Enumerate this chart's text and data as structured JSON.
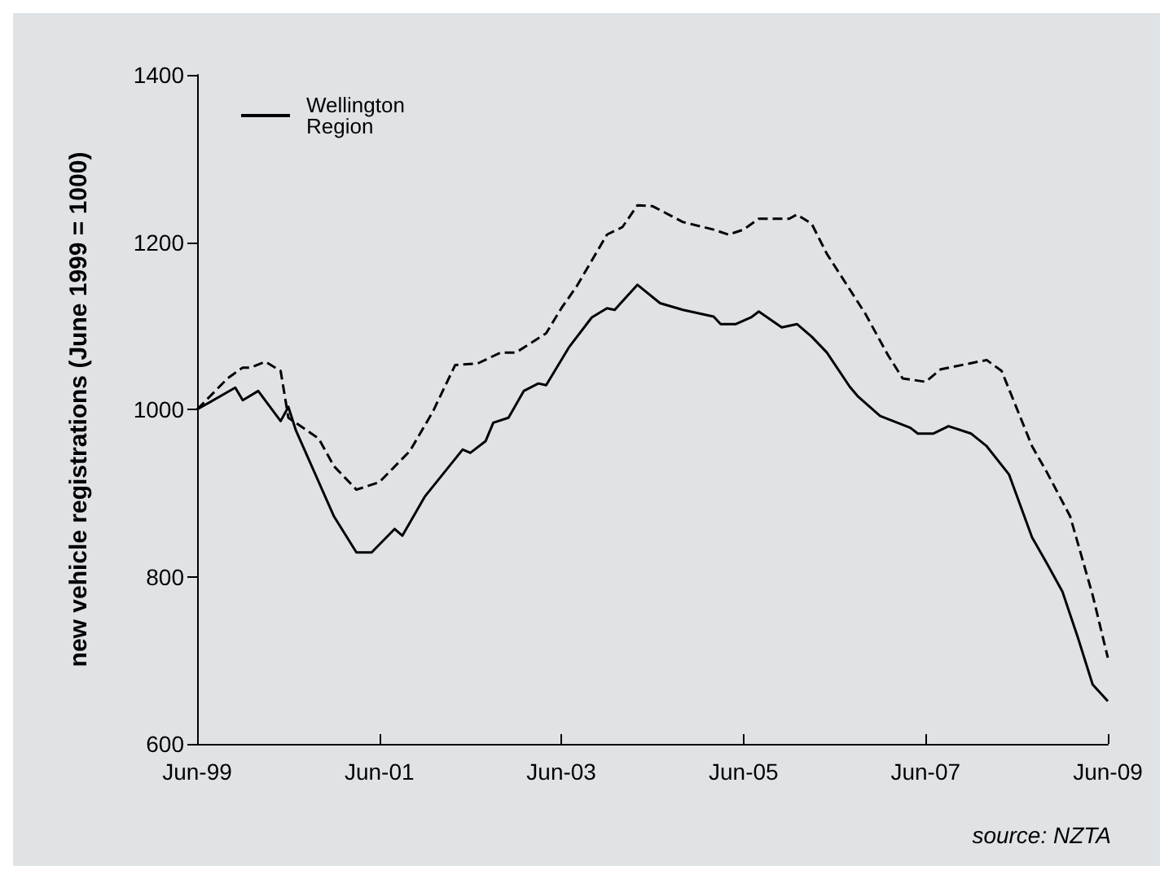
{
  "chart_data": {
    "type": "line",
    "ylabel": "new vehicle registrations (June 1999 = 1000)",
    "annotations": [
      "source: NZTA"
    ],
    "xlim": [
      "1999-06",
      "2009-06"
    ],
    "xticks": [
      {
        "value": "1999-06",
        "label": "Jun-99"
      },
      {
        "value": "2001-06",
        "label": "Jun-01"
      },
      {
        "value": "2003-06",
        "label": "Jun-03"
      },
      {
        "value": "2005-06",
        "label": "Jun-05"
      },
      {
        "value": "2007-06",
        "label": "Jun-07"
      },
      {
        "value": "2009-06",
        "label": "Jun-09"
      }
    ],
    "ylim": [
      600,
      1400
    ],
    "yticks": [
      600,
      800,
      1000,
      1200,
      1400
    ],
    "legend": "top left",
    "marker": "none",
    "series": [
      {
        "name": "Wellington Region",
        "color": "#000000",
        "line_style": "solid",
        "x": [
          "1999-06",
          "1999-11",
          "1999-12",
          "2000-02",
          "2000-05",
          "2000-06",
          "2000-07",
          "2000-12",
          "2001-03",
          "2001-05",
          "2001-08",
          "2001-09",
          "2001-12",
          "2002-05",
          "2002-06",
          "2002-08",
          "2002-09",
          "2002-11",
          "2003-01",
          "2003-03",
          "2003-04",
          "2003-07",
          "2003-10",
          "2003-12",
          "2004-01",
          "2004-04",
          "2004-07",
          "2004-10",
          "2005-02",
          "2005-03",
          "2005-05",
          "2005-07",
          "2005-08",
          "2005-11",
          "2006-01",
          "2006-03",
          "2006-05",
          "2006-08",
          "2006-09",
          "2006-12",
          "2007-04",
          "2007-05",
          "2007-07",
          "2007-09",
          "2007-12",
          "2008-02",
          "2008-05",
          "2008-08",
          "2008-10",
          "2008-12",
          "2009-02",
          "2009-04",
          "2009-06"
        ],
        "values": [
          1000,
          1026,
          1011,
          1022,
          986,
          1003,
          975,
          872,
          829,
          829,
          857,
          849,
          896,
          952,
          948,
          962,
          984,
          990,
          1022,
          1031,
          1029,
          1074,
          1110,
          1121,
          1119,
          1149,
          1127,
          1119,
          1111,
          1102,
          1102,
          1110,
          1117,
          1098,
          1102,
          1087,
          1068,
          1027,
          1016,
          992,
          978,
          971,
          971,
          980,
          971,
          956,
          922,
          847,
          815,
          782,
          727,
          671,
          651
        ]
      },
      {
        "color": "#000000",
        "line_style": "dashed",
        "x": [
          "1999-06",
          "1999-10",
          "1999-12",
          "2000-01",
          "2000-03",
          "2000-05",
          "2000-06",
          "2000-10",
          "2000-12",
          "2001-03",
          "2001-06",
          "2001-09",
          "2001-10",
          "2002-01",
          "2002-04",
          "2002-07",
          "2002-10",
          "2002-12",
          "2003-04",
          "2003-06",
          "2003-08",
          "2003-12",
          "2004-02",
          "2004-04",
          "2004-06",
          "2004-10",
          "2005-02",
          "2005-04",
          "2005-06",
          "2005-08",
          "2005-12",
          "2006-01",
          "2006-03",
          "2006-05",
          "2006-10",
          "2007-01",
          "2007-03",
          "2007-06",
          "2007-08",
          "2008-02",
          "2008-04",
          "2008-08",
          "2008-10",
          "2009-01",
          "2009-04",
          "2009-06"
        ],
        "values": [
          1000,
          1037,
          1050,
          1050,
          1057,
          1046,
          990,
          965,
          932,
          904,
          913,
          941,
          950,
          997,
          1053,
          1055,
          1068,
          1068,
          1091,
          1121,
          1147,
          1209,
          1218,
          1244,
          1243,
          1224,
          1215,
          1209,
          1215,
          1228,
          1228,
          1233,
          1222,
          1186,
          1115,
          1065,
          1037,
          1033,
          1048,
          1059,
          1046,
          956,
          924,
          872,
          778,
          703
        ]
      }
    ]
  }
}
